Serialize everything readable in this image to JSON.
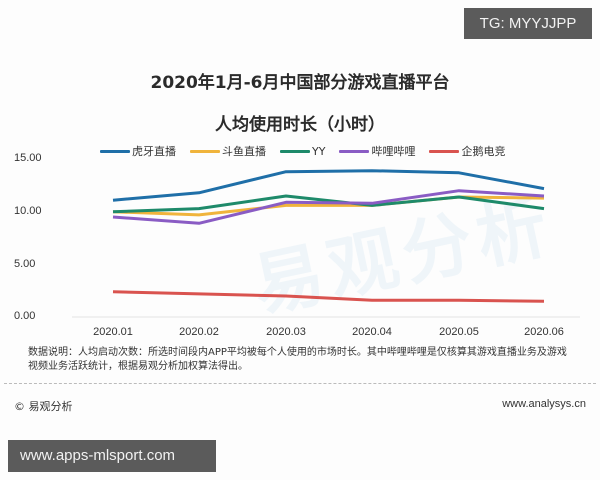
{
  "badges": {
    "top_right": "TG: MYYJJPP",
    "bottom_left": "www.apps-mlsport.com"
  },
  "chart_title": {
    "line1": "2020年1月-6月中国部分游戏直播平台",
    "line2": "人均使用时长（小时）"
  },
  "watermark": "易观分析",
  "legend": [
    {
      "label": "虎牙直播",
      "color": "#1f6fa8"
    },
    {
      "label": "斗鱼直播",
      "color": "#f0b43c"
    },
    {
      "label": "YY",
      "color": "#1e8a6a"
    },
    {
      "label": "哔哩哔哩",
      "color": "#8a5cc4"
    },
    {
      "label": "企鹅电竞",
      "color": "#d9534f"
    }
  ],
  "y_ticks": [
    "15.00",
    "10.00",
    "5.00",
    "0.00"
  ],
  "x_ticks": [
    "2020.01",
    "2020.02",
    "2020.03",
    "2020.04",
    "2020.05",
    "2020.06"
  ],
  "note": "数据说明：人均启动次数：所选时间段内APP平均被每个人使用的市场时长。其中哔哩哔哩是仅核算其游戏直播业务及游戏视频业务活跃统计，根据易观分析加权算法得出。",
  "footer": {
    "left": "© 易观分析",
    "right": "www.analysys.cn"
  },
  "chart_data": {
    "type": "line",
    "title": "2020年1月-6月中国部分游戏直播平台人均使用时长（小时）",
    "xlabel": "",
    "ylabel": "",
    "ylim": [
      0,
      15
    ],
    "grid": false,
    "legend_position": "top",
    "categories": [
      "2020.01",
      "2020.02",
      "2020.03",
      "2020.04",
      "2020.05",
      "2020.06"
    ],
    "series": [
      {
        "name": "虎牙直播",
        "color": "#1f6fa8",
        "values": [
          11.0,
          11.7,
          13.7,
          13.8,
          13.6,
          12.1
        ]
      },
      {
        "name": "斗鱼直播",
        "color": "#f0b43c",
        "values": [
          9.9,
          9.6,
          10.5,
          10.5,
          11.3,
          11.2
        ]
      },
      {
        "name": "YY",
        "color": "#1e8a6a",
        "values": [
          9.9,
          10.2,
          11.4,
          10.5,
          11.3,
          10.2
        ]
      },
      {
        "name": "哔哩哔哩",
        "color": "#8a5cc4",
        "values": [
          9.4,
          8.8,
          10.8,
          10.7,
          11.9,
          11.4
        ]
      },
      {
        "name": "企鹅电竞",
        "color": "#d9534f",
        "values": [
          2.3,
          2.1,
          1.9,
          1.5,
          1.5,
          1.4
        ]
      }
    ]
  }
}
